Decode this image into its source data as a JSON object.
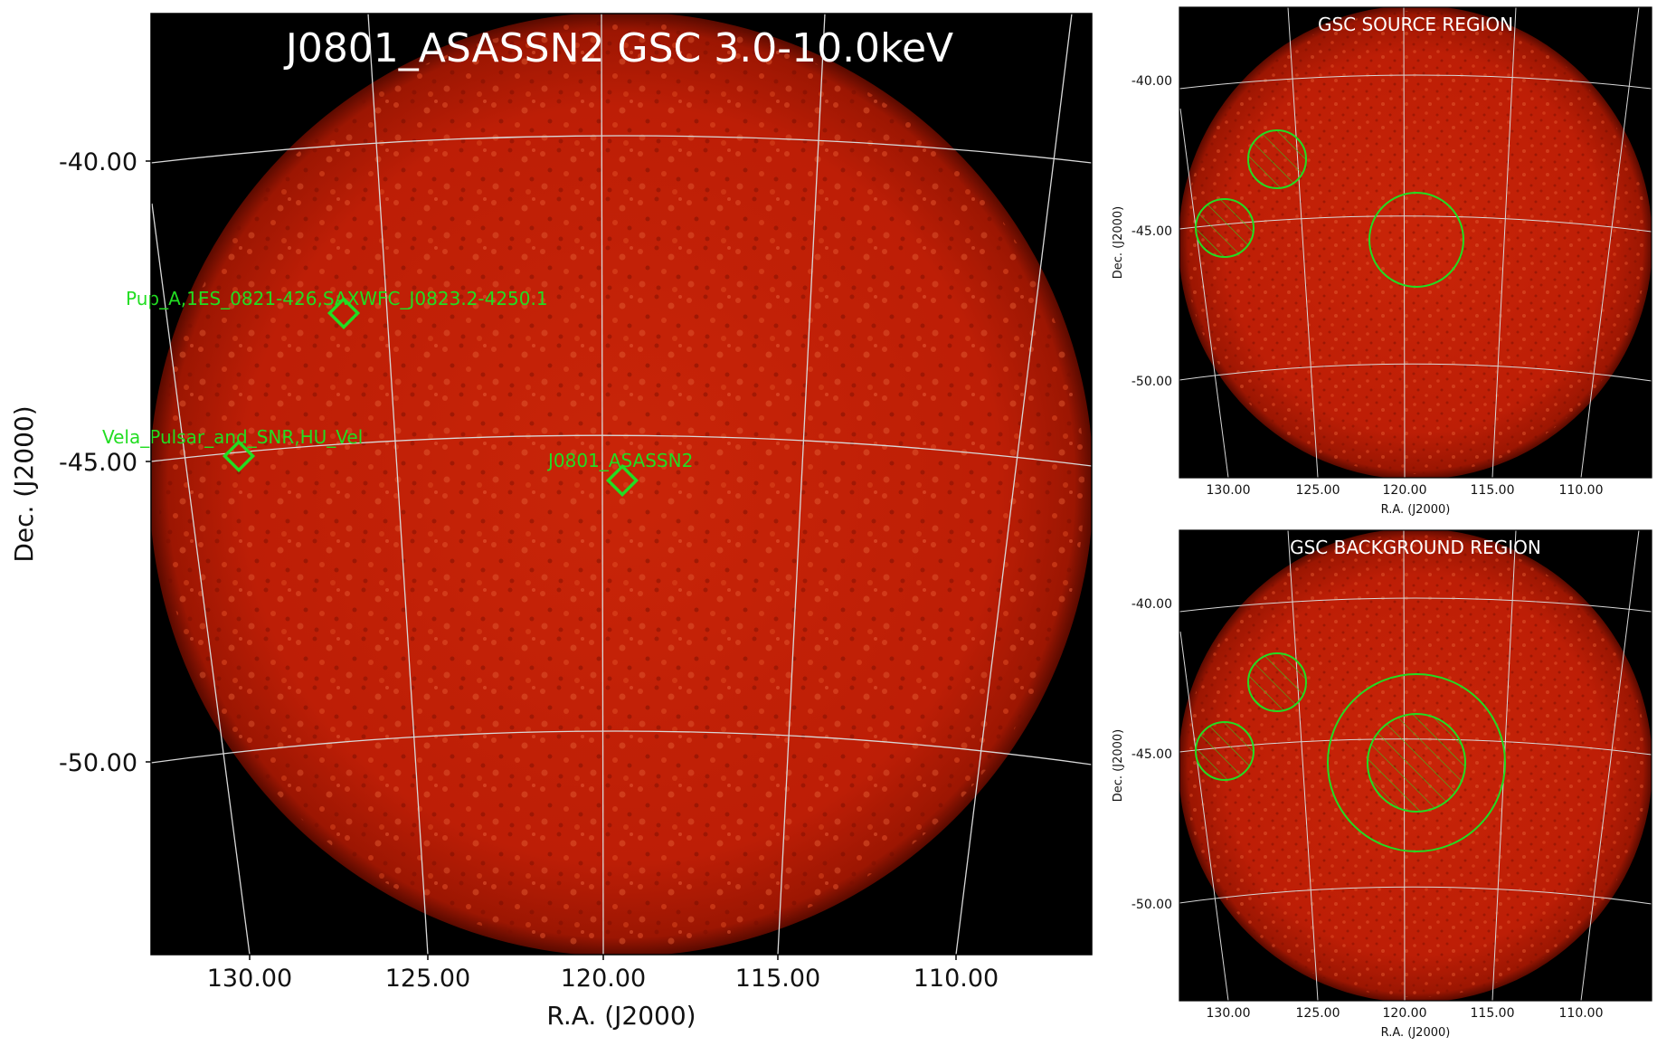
{
  "colors": {
    "sky_background": "#000000",
    "map_core": "#c21f08",
    "map_edge": "#8a1200",
    "grid_line": "#d8d8d8",
    "marker": "#22dd22"
  },
  "main_panel": {
    "title": "J0801_ASASSN2 GSC 3.0-10.0keV",
    "xlabel": "R.A. (J2000)",
    "ylabel": "Dec. (J2000)",
    "x_ticks": [
      "130.00",
      "125.00",
      "120.00",
      "115.00",
      "110.00"
    ],
    "y_ticks": [
      "-40.00",
      "-45.00",
      "-50.00"
    ],
    "sources": [
      {
        "label": "Pup_A,1ES_0821-426,SAXWFC_J0823.2-4250.1",
        "marker": "diamond"
      },
      {
        "label": "Vela_Pulsar_and_SNR,HU_Vel",
        "marker": "diamond"
      },
      {
        "label": "J0801_ASASSN2",
        "marker": "diamond"
      }
    ]
  },
  "source_panel": {
    "title": "GSC SOURCE REGION",
    "xlabel": "R.A. (J2000)",
    "ylabel": "Dec. (J2000)",
    "x_ticks": [
      "130.00",
      "125.00",
      "120.00",
      "115.00",
      "110.00"
    ],
    "y_ticks": [
      "-40.00",
      "-45.00",
      "-50.00"
    ]
  },
  "background_panel": {
    "title": "GSC BACKGROUND REGION",
    "xlabel": "R.A. (J2000)",
    "ylabel": "Dec. (J2000)",
    "x_ticks": [
      "130.00",
      "125.00",
      "120.00",
      "115.00",
      "110.00"
    ],
    "y_ticks": [
      "-40.00",
      "-45.00",
      "-50.00"
    ]
  }
}
